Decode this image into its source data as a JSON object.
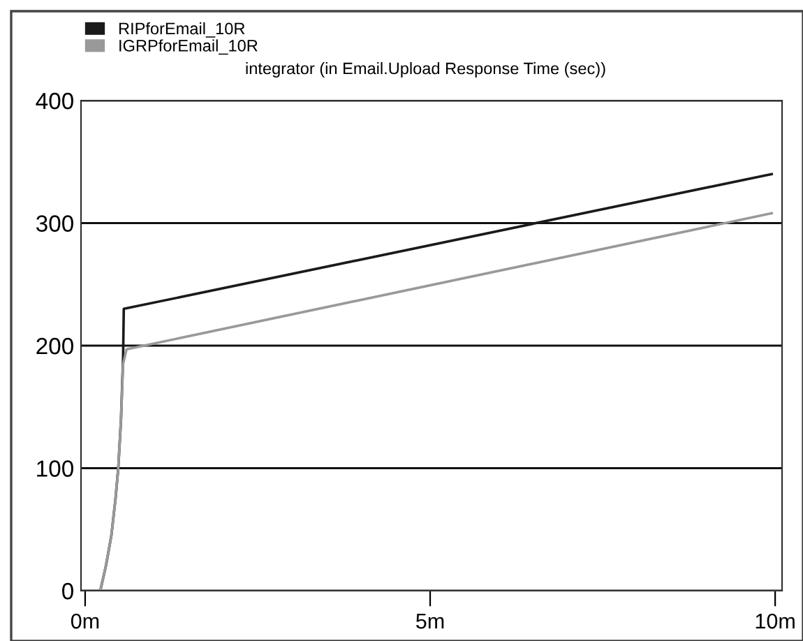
{
  "chart_data": {
    "type": "line",
    "title": "integrator (in Email.Upload Response Time (sec))",
    "series": [
      {
        "name": "RIPforEmail_10R",
        "color": "#1a1a1a",
        "x": [
          0.02,
          0.22,
          0.3,
          0.38,
          0.44,
          0.48,
          0.52,
          0.55,
          0.56,
          9.95
        ],
        "values": [
          0,
          0,
          20,
          45,
          75,
          100,
          140,
          190,
          230,
          340
        ]
      },
      {
        "name": "IGRPforEmail_10R",
        "color": "#999999",
        "x": [
          0.02,
          0.22,
          0.3,
          0.38,
          0.44,
          0.48,
          0.52,
          0.55,
          0.6,
          9.95
        ],
        "values": [
          0,
          0,
          20,
          45,
          75,
          100,
          140,
          185,
          197,
          308
        ]
      }
    ],
    "xlim": [
      -0.06,
      10.1
    ],
    "xticks": [
      {
        "value": 0,
        "label": "0m"
      },
      {
        "value": 5,
        "label": "5m"
      },
      {
        "value": 10,
        "label": "10m"
      }
    ],
    "ylim": [
      0,
      400
    ],
    "yticks": [
      0,
      100,
      200,
      300,
      400
    ],
    "grid": "y",
    "legend": "top left",
    "marker": "none",
    "line_style": "solid"
  }
}
